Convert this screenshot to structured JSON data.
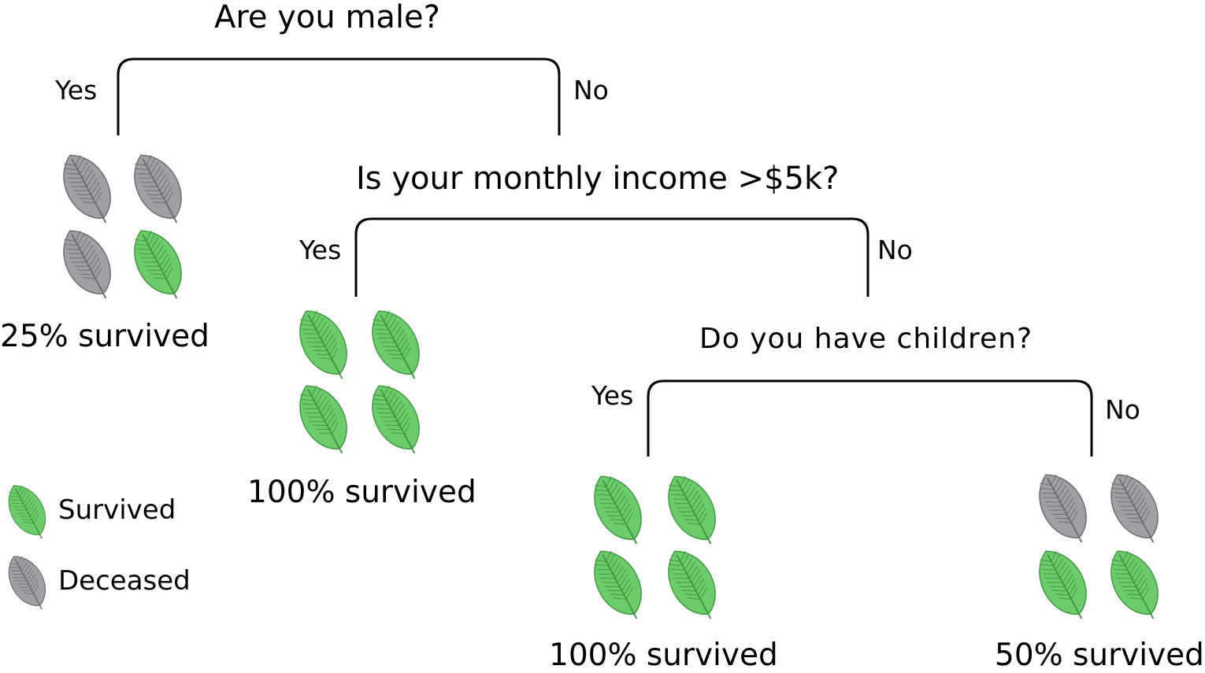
{
  "colors": {
    "survived": "#6ccc6c",
    "survived_vein": "#3f9a3f",
    "deceased": "#a0a0a4",
    "deceased_vein": "#6e6e72",
    "line": "#000000"
  },
  "questions": {
    "q1": "Are you male?",
    "q2": "Is your monthly income >$5k?",
    "q3": "Do you have children?"
  },
  "branches": {
    "yes": "Yes",
    "no": "No"
  },
  "leaves": {
    "male": {
      "result": "25% survived",
      "icons": [
        "deceased",
        "deceased",
        "deceased",
        "survived"
      ]
    },
    "income": {
      "result": "100% survived",
      "icons": [
        "survived",
        "survived",
        "survived",
        "survived"
      ]
    },
    "children_yes": {
      "result": "100% survived",
      "icons": [
        "survived",
        "survived",
        "survived",
        "survived"
      ]
    },
    "children_no": {
      "result": "50% survived",
      "icons": [
        "deceased",
        "deceased",
        "survived",
        "survived"
      ]
    }
  },
  "legend": {
    "survived": "Survived",
    "deceased": "Deceased"
  }
}
